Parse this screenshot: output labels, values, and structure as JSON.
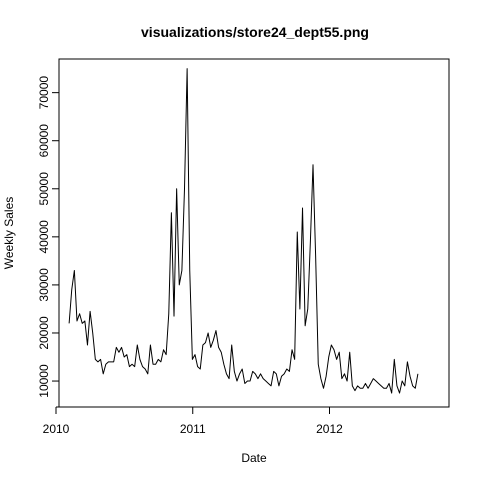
{
  "chart_data": {
    "type": "line",
    "title": "visualizations/store24_dept55.png",
    "xlabel": "Date",
    "ylabel": "Weekly Sales",
    "x_start": "2010-02-05",
    "x_interval_days": 7,
    "xlim": [
      "2010-01-09",
      "2012-11-15"
    ],
    "ylim": [
      4600,
      77000
    ],
    "x_ticks": [
      {
        "date": "2010-01-01",
        "label": "2010"
      },
      {
        "date": "2011-01-01",
        "label": "2011"
      },
      {
        "date": "2012-01-01",
        "label": "2012"
      }
    ],
    "y_ticks": [
      10000,
      20000,
      30000,
      40000,
      50000,
      60000,
      70000
    ],
    "y_tick_labels": [
      "10000",
      "20000",
      "30000",
      "40000",
      "50000",
      "60000",
      "70000"
    ],
    "grid": false,
    "legend": "none",
    "series": [
      {
        "color": "#000000",
        "values": [
          22000,
          29000,
          33000,
          22500,
          24000,
          22000,
          22500,
          17500,
          24500,
          20000,
          14500,
          14000,
          14500,
          11500,
          13500,
          14000,
          14000,
          14000,
          17000,
          16000,
          17000,
          15000,
          15500,
          13000,
          13500,
          13000,
          17500,
          14500,
          13000,
          12500,
          11500,
          17500,
          13500,
          13500,
          14500,
          14000,
          16500,
          15500,
          24000,
          45000,
          23500,
          50000,
          30000,
          33000,
          50000,
          75000,
          33000,
          14500,
          15500,
          13000,
          12500,
          17500,
          18000,
          20000,
          17000,
          18500,
          20500,
          17000,
          16000,
          13500,
          11500,
          10500,
          17500,
          12000,
          10000,
          11500,
          12500,
          9500,
          10000,
          10000,
          12000,
          11500,
          10500,
          11500,
          10500,
          10000,
          9500,
          9000,
          12000,
          11500,
          9000,
          11000,
          11500,
          12500,
          12000,
          16500,
          14500,
          41000,
          25000,
          46000,
          21500,
          25000,
          39000,
          55000,
          36000,
          13500,
          10500,
          8500,
          11000,
          15000,
          17500,
          16500,
          14500,
          16000,
          10500,
          11500,
          10000,
          16000,
          9000,
          8000,
          9000,
          8500,
          8500,
          9500,
          8500,
          9500,
          10500,
          10000,
          9500,
          9000,
          8500,
          8500,
          9500,
          7500,
          14500,
          9000,
          7500,
          10000,
          9000,
          14000,
          11000,
          9000,
          8500,
          11500
        ]
      }
    ]
  }
}
